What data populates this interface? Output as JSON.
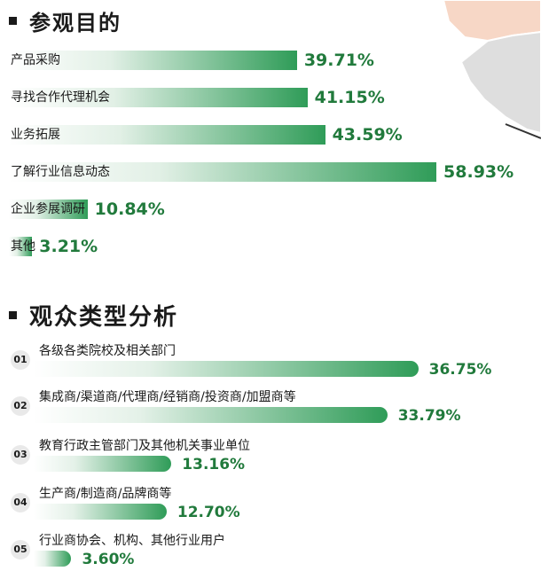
{
  "chart_data": [
    {
      "type": "bar",
      "orientation": "horizontal",
      "title": "参观目的",
      "categories": [
        "产品采购",
        "寻找合作代理机会",
        "业务拓展",
        "了解行业信息动态",
        "企业参展调研",
        "其他"
      ],
      "values": [
        39.71,
        41.15,
        43.59,
        58.93,
        10.84,
        3.21
      ],
      "value_labels": [
        "39.71%",
        "41.15%",
        "43.59%",
        "58.93%",
        "10.84%",
        "3.21%"
      ],
      "unit": "%",
      "xlim": [
        0,
        100
      ],
      "grid": false,
      "legend": "none"
    },
    {
      "type": "bar",
      "orientation": "horizontal",
      "title": "观众类型分析",
      "indices": [
        "01",
        "02",
        "03",
        "04",
        "05"
      ],
      "categories": [
        "各级各类院校及相关部门",
        "集成商/渠道商/代理商/经销商/投资商/加盟商等",
        "教育行政主管部门及其他机关事业单位",
        "生产商/制造商/品牌商等",
        "行业商协会、机构、其他行业用户"
      ],
      "values": [
        36.75,
        33.79,
        13.16,
        12.7,
        3.6
      ],
      "value_labels": [
        "36.75%",
        "33.79%",
        "13.16%",
        "12.70%",
        "3.60%"
      ],
      "unit": "%",
      "xlim": [
        0,
        100
      ],
      "grid": false,
      "legend": "none"
    }
  ],
  "colors": {
    "accent": "#217a3c",
    "bar_dark": "#2f9c58",
    "bar_light": "#e2f0e6",
    "map_peach": "#f7d7c6",
    "map_gray": "#dedede"
  }
}
